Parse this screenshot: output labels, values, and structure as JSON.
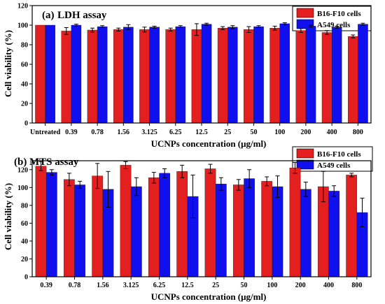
{
  "chart_data": [
    {
      "type": "bar",
      "panel_label": "(a)",
      "title": "LDH assay",
      "xlabel": "UCNPs concentration (μg/ml)",
      "ylabel": "Cell viability (%)",
      "ylim": [
        0,
        120
      ],
      "yticks": [
        0,
        20,
        40,
        60,
        80,
        100,
        120
      ],
      "legend_position": "top-right",
      "categories": [
        "Untreated",
        "0.39",
        "0.78",
        "1.56",
        "3.125",
        "6.25",
        "12.5",
        "25",
        "50",
        "100",
        "200",
        "400",
        "800"
      ],
      "series": [
        {
          "name": "B16-F10 cells",
          "color": "#e41f1f",
          "values": [
            100,
            94,
            95,
            95.5,
            95.5,
            95.5,
            95.5,
            97,
            95.5,
            97,
            94.5,
            92.5,
            88.5
          ],
          "errors": [
            0,
            3.5,
            2,
            1.5,
            2.5,
            1.5,
            6,
            1.5,
            3,
            2,
            2,
            2,
            1.5
          ]
        },
        {
          "name": "A549 cells",
          "color": "#1010ee",
          "values": [
            100,
            100,
            98.5,
            98,
            98,
            98.5,
            101,
            98,
            98.5,
            101.5,
            99,
            98,
            101
          ],
          "errors": [
            0,
            1,
            1,
            2.5,
            1,
            1,
            1,
            1.5,
            1,
            1,
            1,
            1,
            1
          ]
        }
      ]
    },
    {
      "type": "bar",
      "panel_label": "(b)",
      "title": "MTS assay",
      "xlabel": "UCNPs concentration (μg/ml)",
      "ylabel": "Cell viability (%)",
      "ylim": [
        0,
        130
      ],
      "yticks": [
        0,
        20,
        40,
        60,
        80,
        100,
        120
      ],
      "legend_position": "top-right",
      "categories": [
        "0.39",
        "0.78",
        "1.56",
        "3.125",
        "6.25",
        "12.5",
        "25",
        "50",
        "100",
        "200",
        "400",
        "800"
      ],
      "series": [
        {
          "name": "B16-F10 cells",
          "color": "#e41f1f",
          "values": [
            124,
            109,
            113,
            125,
            111,
            118,
            121,
            103,
            107,
            122,
            101,
            114
          ],
          "errors": [
            5,
            7,
            14,
            4,
            6,
            7,
            5,
            6,
            5,
            6,
            17,
            2
          ]
        },
        {
          "name": "A549 cells",
          "color": "#1010ee",
          "values": [
            117,
            103,
            98,
            101,
            116,
            90,
            104,
            110,
            101,
            98,
            96,
            72
          ],
          "errors": [
            3,
            4,
            20,
            10,
            5,
            24,
            7,
            10,
            12,
            8,
            6,
            16
          ]
        }
      ]
    }
  ]
}
